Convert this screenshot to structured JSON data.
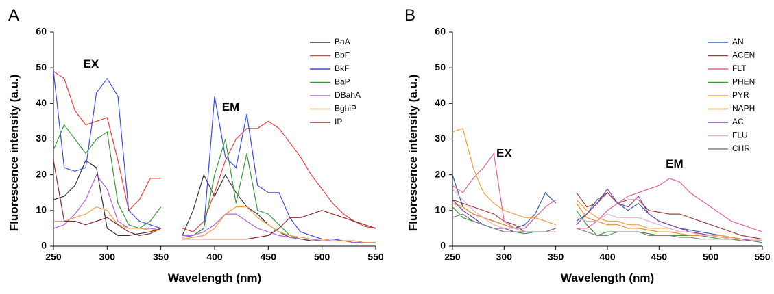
{
  "chart_data": [
    {
      "type": "line",
      "panel": "A",
      "annotations": [
        "EX",
        "EM"
      ],
      "xlabel": "Wavelength (nm)",
      "ylabel": "Fluorescence intensity (a.u.)",
      "xlim": [
        250,
        550
      ],
      "ylim": [
        0,
        60
      ],
      "xticks": [
        250,
        300,
        350,
        400,
        450,
        500,
        550
      ],
      "yticks": [
        0,
        10,
        20,
        30,
        40,
        50,
        60
      ],
      "x": [
        250,
        260,
        270,
        280,
        290,
        300,
        310,
        320,
        330,
        340,
        350,
        360,
        370,
        380,
        390,
        400,
        410,
        420,
        430,
        440,
        450,
        460,
        470,
        480,
        490,
        500,
        510,
        520,
        530,
        540,
        550
      ],
      "series": [
        {
          "name": "BaA",
          "color": "#333333",
          "values": [
            13,
            14,
            17,
            24,
            22,
            5,
            3,
            3,
            3.5,
            4,
            5,
            null,
            3,
            10,
            20,
            14,
            20,
            15,
            11,
            9,
            6,
            4,
            2.5,
            2,
            1.5,
            1.5,
            1.5,
            1.5,
            1,
            1,
            1
          ]
        },
        {
          "name": "BbF",
          "color": "#e8413c",
          "values": [
            49,
            47,
            38,
            34,
            35,
            36,
            24,
            10,
            13,
            19,
            19,
            null,
            5,
            4,
            7,
            15,
            24,
            30,
            33,
            33,
            35,
            33,
            29,
            25,
            20,
            16,
            12,
            9,
            7,
            5.5,
            5
          ]
        },
        {
          "name": "BkF",
          "color": "#3b4ce0",
          "values": [
            49,
            22,
            21,
            22,
            43,
            47,
            42,
            10,
            7,
            6,
            5,
            null,
            3,
            3,
            5,
            42,
            25,
            22,
            37,
            17,
            15,
            15,
            8,
            4,
            3,
            2,
            2,
            1.5,
            1.5,
            1,
            1
          ]
        },
        {
          "name": "BaP",
          "color": "#3a9a3a",
          "values": [
            27,
            34,
            30,
            26,
            30,
            32,
            12,
            6,
            5,
            7,
            11,
            null,
            2.5,
            3,
            5,
            20,
            30,
            12,
            26,
            10,
            9,
            6,
            3,
            2,
            2,
            1.5,
            1.5,
            1.5,
            1,
            1,
            1
          ]
        },
        {
          "name": "DBahA",
          "color": "#b160e0",
          "values": [
            5,
            6,
            9,
            13,
            20,
            16,
            7,
            5,
            5,
            5,
            4.5,
            null,
            3,
            3,
            4,
            6,
            9,
            9,
            7,
            5,
            4,
            3,
            2.5,
            2,
            2,
            1.5,
            1.5,
            1.5,
            1,
            1,
            1
          ]
        },
        {
          "name": "BghiP",
          "color": "#f5a040",
          "values": [
            7,
            7,
            8,
            9,
            11,
            10,
            6,
            5,
            5,
            4.5,
            4.5,
            null,
            2,
            2.5,
            3,
            5,
            9,
            11,
            11,
            8,
            6,
            4,
            3,
            2.5,
            2,
            2,
            1.5,
            1.5,
            1.5,
            1,
            1
          ]
        },
        {
          "name": "IP",
          "color": "#8b2a2a",
          "values": [
            24,
            7,
            7,
            6,
            7,
            8,
            6,
            4,
            3,
            3.5,
            5,
            null,
            2,
            2,
            2,
            2,
            2,
            2,
            2,
            2.5,
            3,
            5,
            8,
            8,
            9,
            10,
            9,
            8,
            7,
            6,
            5
          ]
        }
      ]
    },
    {
      "type": "line",
      "panel": "B",
      "annotations": [
        "EX",
        "EM"
      ],
      "xlabel": "Wavelength (nm)",
      "ylabel": "Fluorescence intensity (a.u.)",
      "xlim": [
        250,
        550
      ],
      "ylim": [
        0,
        60
      ],
      "xticks": [
        250,
        300,
        350,
        400,
        450,
        500,
        550
      ],
      "yticks": [
        0,
        10,
        20,
        30,
        40,
        50,
        60
      ],
      "x": [
        250,
        260,
        270,
        280,
        290,
        300,
        310,
        320,
        330,
        340,
        350,
        360,
        370,
        380,
        390,
        400,
        410,
        420,
        430,
        440,
        450,
        460,
        470,
        480,
        490,
        500,
        510,
        520,
        530,
        540,
        550
      ],
      "series": [
        {
          "name": "AN",
          "color": "#3a5fa0",
          "values": [
            20,
            11,
            9,
            8,
            7,
            6,
            5,
            6,
            9,
            15,
            12,
            null,
            7,
            9,
            13,
            15,
            12,
            10,
            12,
            9,
            7,
            6,
            5,
            4.5,
            4,
            3.5,
            3,
            2.5,
            2,
            2,
            2
          ]
        },
        {
          "name": "ACEN",
          "color": "#a04040",
          "values": [
            13,
            12,
            11,
            10,
            9,
            7,
            6,
            4,
            4,
            4,
            4,
            null,
            15,
            11,
            12,
            15,
            12,
            13,
            13,
            10,
            9.5,
            9,
            9,
            8,
            7,
            6,
            5,
            4,
            3,
            2.5,
            2
          ]
        },
        {
          "name": "FLT",
          "color": "#e060a0",
          "values": [
            17,
            15,
            19,
            22,
            26,
            7,
            5,
            5,
            8,
            11,
            13,
            null,
            5,
            5,
            7,
            10,
            12,
            14,
            15,
            16,
            17,
            19,
            18,
            15,
            13,
            11,
            9,
            7,
            6,
            5,
            4
          ]
        },
        {
          "name": "PHEN",
          "color": "#3a9a3a",
          "values": [
            11,
            8,
            7,
            6,
            5,
            4,
            4,
            3.5,
            4,
            4,
            4,
            null,
            10,
            6,
            3,
            4,
            4,
            4,
            4,
            3.5,
            3,
            3,
            3,
            3,
            3,
            2.5,
            2,
            2,
            1.5,
            1.5,
            1
          ]
        },
        {
          "name": "PYR",
          "color": "#f5a040",
          "values": [
            32,
            33,
            22,
            15,
            12,
            10,
            9,
            8,
            8,
            7,
            6,
            null,
            13,
            10,
            8,
            7,
            7,
            6,
            6,
            5,
            5,
            5,
            4,
            4,
            3.5,
            3,
            3,
            2.5,
            2,
            2,
            2
          ]
        },
        {
          "name": "NAPH",
          "color": "#e89020",
          "values": [
            12,
            11,
            9,
            8,
            7,
            6,
            5,
            4,
            4,
            4,
            4,
            null,
            12,
            8,
            7,
            6,
            6,
            5,
            5,
            4.5,
            4,
            4,
            3.5,
            3,
            3,
            3,
            2.5,
            2.5,
            2,
            2,
            2
          ]
        },
        {
          "name": "AC",
          "color": "#8040a0",
          "values": [
            13,
            10,
            8,
            6,
            5,
            5,
            4,
            4,
            4,
            4,
            5,
            null,
            6,
            9,
            12,
            16,
            12,
            11,
            14,
            9,
            7,
            6,
            5,
            4,
            3.5,
            3,
            2.5,
            2,
            2,
            1.5,
            1.5
          ]
        },
        {
          "name": "FLU",
          "color": "#e0b0d0",
          "values": [
            16,
            13,
            10,
            8,
            6,
            5,
            5,
            4,
            4,
            4,
            4,
            null,
            8,
            7,
            7,
            9,
            8,
            8,
            8,
            7,
            6,
            5,
            4,
            4,
            3,
            3,
            2.5,
            2,
            2,
            2,
            2
          ]
        },
        {
          "name": "CHR",
          "color": "#808080",
          "values": [
            8,
            9,
            7,
            6,
            5,
            4,
            4,
            4,
            4,
            4,
            5,
            null,
            5,
            4,
            3,
            3,
            4,
            4,
            4,
            3,
            3,
            3,
            2.5,
            2.5,
            2,
            2,
            2,
            2,
            1.5,
            1.5,
            1.5
          ]
        }
      ]
    }
  ]
}
